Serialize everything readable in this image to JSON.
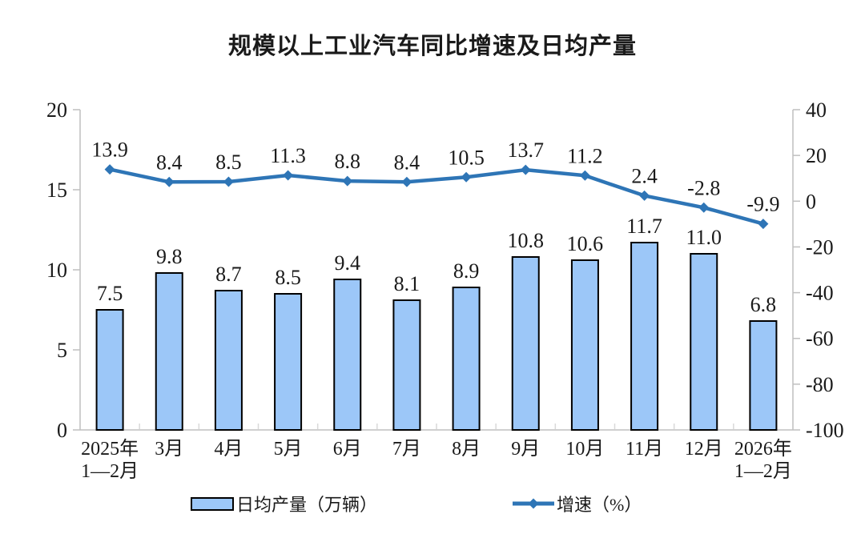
{
  "chart_data": {
    "type": "combo",
    "title": "规模以上工业汽车同比增速及日均产量",
    "categories": [
      "2025年1—2月",
      "3月",
      "4月",
      "5月",
      "6月",
      "7月",
      "8月",
      "9月",
      "10月",
      "11月",
      "12月",
      "2026年1—2月"
    ],
    "category_display_lines": [
      [
        "2025年",
        "1—2月"
      ],
      [
        "3月"
      ],
      [
        "4月"
      ],
      [
        "5月"
      ],
      [
        "6月"
      ],
      [
        "7月"
      ],
      [
        "8月"
      ],
      [
        "9月"
      ],
      [
        "10月"
      ],
      [
        "11月"
      ],
      [
        "12月"
      ],
      [
        "2026年",
        "1—2月"
      ]
    ],
    "series": [
      {
        "name": "日均产量（万辆）",
        "type": "bar",
        "axis": "left",
        "values": [
          7.5,
          9.8,
          8.7,
          8.5,
          9.4,
          8.1,
          8.9,
          10.8,
          10.6,
          11.7,
          11.0,
          6.8
        ],
        "labels": [
          "7.5",
          "9.8",
          "8.7",
          "8.5",
          "9.4",
          "8.1",
          "8.9",
          "10.8",
          "10.6",
          "11.7",
          "11.0",
          "6.8"
        ]
      },
      {
        "name": "增速（%）",
        "type": "line",
        "axis": "right",
        "values": [
          13.9,
          8.4,
          8.5,
          11.3,
          8.8,
          8.4,
          10.5,
          13.7,
          11.2,
          2.4,
          -2.8,
          -9.9
        ],
        "labels": [
          "13.9",
          "8.4",
          "8.5",
          "11.3",
          "8.8",
          "8.4",
          "10.5",
          "13.7",
          "11.2",
          "2.4",
          "-2.8",
          "-9.9"
        ]
      }
    ],
    "left_axis": {
      "min": 0,
      "max": 20,
      "ticks": [
        0,
        5,
        10,
        15,
        20
      ],
      "tick_labels": [
        "0",
        "5",
        "10",
        "15",
        "20"
      ]
    },
    "right_axis": {
      "min": -100,
      "max": 40,
      "ticks": [
        40,
        20,
        0,
        -20,
        -40,
        -60,
        -80,
        -100
      ],
      "tick_labels": [
        "40",
        "20",
        "0",
        "-20",
        "-40",
        "-60",
        "-80",
        "-100"
      ]
    },
    "grid": false,
    "legend_position": "bottom",
    "colors": {
      "bar_fill": "#9CC7F8",
      "bar_border": "#000000",
      "line": "#2E75B6",
      "axis": "#BFBFBF",
      "boundary_tick": "#D9D9D9",
      "text": "#1A1A1A"
    }
  }
}
